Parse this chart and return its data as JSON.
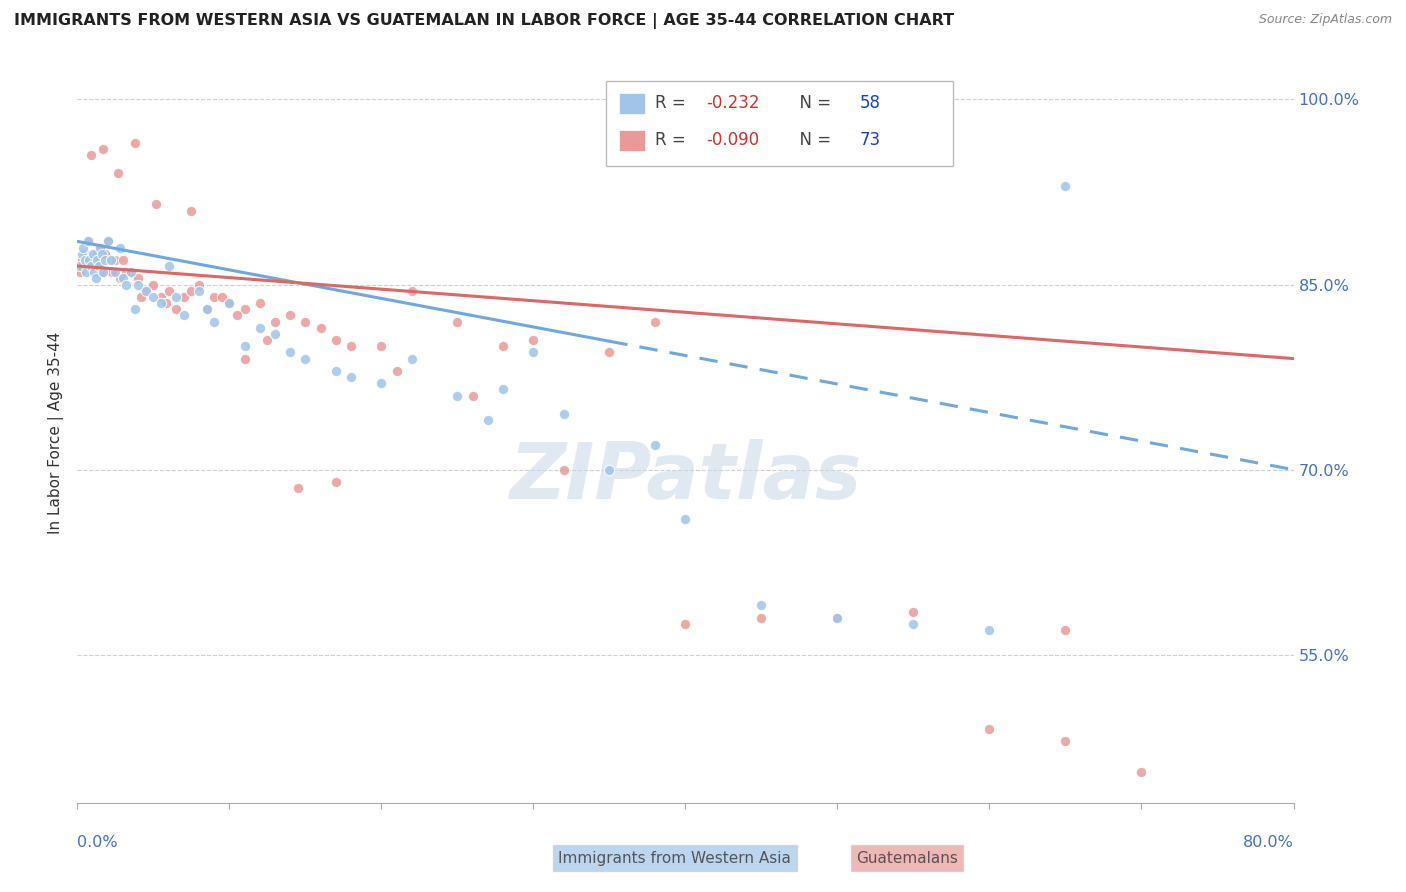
{
  "title": "IMMIGRANTS FROM WESTERN ASIA VS GUATEMALAN IN LABOR FORCE | AGE 35-44 CORRELATION CHART",
  "source": "Source: ZipAtlas.com",
  "ylabel": "In Labor Force | Age 35-44",
  "x_min": 0.0,
  "x_max": 80.0,
  "y_min": 43.0,
  "y_max": 103.0,
  "legend_r_blue": "-0.232",
  "legend_n_blue": "58",
  "legend_r_pink": "-0.090",
  "legend_n_pink": "73",
  "blue_color": "#9fc5e8",
  "pink_color": "#ea9999",
  "blue_line_color": "#6fa8dc",
  "pink_line_color": "#e06666",
  "blue_scatter_x": [
    0.2,
    0.3,
    0.4,
    0.5,
    0.6,
    0.7,
    0.8,
    0.9,
    1.0,
    1.1,
    1.2,
    1.3,
    1.4,
    1.5,
    1.6,
    1.7,
    1.8,
    2.0,
    2.2,
    2.5,
    2.8,
    3.0,
    3.5,
    4.0,
    4.5,
    5.0,
    5.5,
    6.0,
    7.0,
    8.0,
    9.0,
    10.0,
    11.0,
    12.0,
    13.0,
    15.0,
    17.0,
    20.0,
    22.0,
    25.0,
    27.0,
    30.0,
    35.0,
    40.0,
    45.0,
    50.0,
    55.0,
    60.0,
    3.2,
    3.8,
    6.5,
    8.5,
    14.0,
    18.0,
    28.0,
    32.0,
    38.0,
    65.0
  ],
  "blue_scatter_y": [
    86.5,
    87.5,
    88.0,
    87.0,
    86.0,
    88.5,
    87.0,
    86.5,
    87.5,
    86.0,
    85.5,
    87.0,
    86.5,
    88.0,
    87.5,
    86.0,
    87.0,
    88.5,
    87.0,
    86.0,
    88.0,
    85.5,
    86.0,
    85.0,
    84.5,
    84.0,
    83.5,
    86.5,
    82.5,
    84.5,
    82.0,
    83.5,
    80.0,
    81.5,
    81.0,
    79.0,
    78.0,
    77.0,
    79.0,
    76.0,
    74.0,
    79.5,
    70.0,
    66.0,
    59.0,
    58.0,
    57.5,
    57.0,
    85.0,
    83.0,
    84.0,
    83.0,
    79.5,
    77.5,
    76.5,
    74.5,
    72.0,
    93.0
  ],
  "pink_scatter_x": [
    0.2,
    0.3,
    0.5,
    0.7,
    0.8,
    1.0,
    1.2,
    1.3,
    1.5,
    1.6,
    1.8,
    2.0,
    2.2,
    2.5,
    2.8,
    3.0,
    3.5,
    4.0,
    4.5,
    5.0,
    5.5,
    6.0,
    6.5,
    7.0,
    7.5,
    8.0,
    9.0,
    10.0,
    11.0,
    12.0,
    13.0,
    14.0,
    15.0,
    16.0,
    17.0,
    18.0,
    20.0,
    22.0,
    25.0,
    28.0,
    30.0,
    35.0,
    38.0,
    40.0,
    45.0,
    50.0,
    55.0,
    60.0,
    65.0,
    70.0,
    1.1,
    1.4,
    2.3,
    3.2,
    4.2,
    5.8,
    8.5,
    10.5,
    12.5,
    14.5,
    17.0,
    21.0,
    26.0,
    32.0,
    0.9,
    1.7,
    2.7,
    3.8,
    5.2,
    7.5,
    9.5,
    11.0,
    65.0
  ],
  "pink_scatter_y": [
    86.0,
    87.0,
    87.5,
    86.5,
    88.5,
    87.0,
    86.5,
    87.5,
    88.0,
    86.0,
    87.5,
    88.5,
    86.0,
    87.0,
    85.5,
    87.0,
    86.0,
    85.5,
    84.5,
    85.0,
    84.0,
    84.5,
    83.0,
    84.0,
    84.5,
    85.0,
    84.0,
    83.5,
    83.0,
    83.5,
    82.0,
    82.5,
    82.0,
    81.5,
    80.5,
    80.0,
    80.0,
    84.5,
    82.0,
    80.0,
    80.5,
    79.5,
    82.0,
    57.5,
    58.0,
    58.0,
    58.5,
    49.0,
    48.0,
    45.5,
    87.0,
    86.5,
    86.0,
    86.0,
    84.0,
    83.5,
    83.0,
    82.5,
    80.5,
    68.5,
    69.0,
    78.0,
    76.0,
    70.0,
    95.5,
    96.0,
    94.0,
    96.5,
    91.5,
    91.0,
    84.0,
    79.0,
    57.0
  ],
  "blue_trend_x0": 0.0,
  "blue_trend_x1": 80.0,
  "blue_trend_y0": 88.5,
  "blue_trend_y1": 70.0,
  "blue_solid_end_x": 35.0,
  "pink_trend_x0": 0.0,
  "pink_trend_x1": 80.0,
  "pink_trend_y0": 86.5,
  "pink_trend_y1": 79.0
}
